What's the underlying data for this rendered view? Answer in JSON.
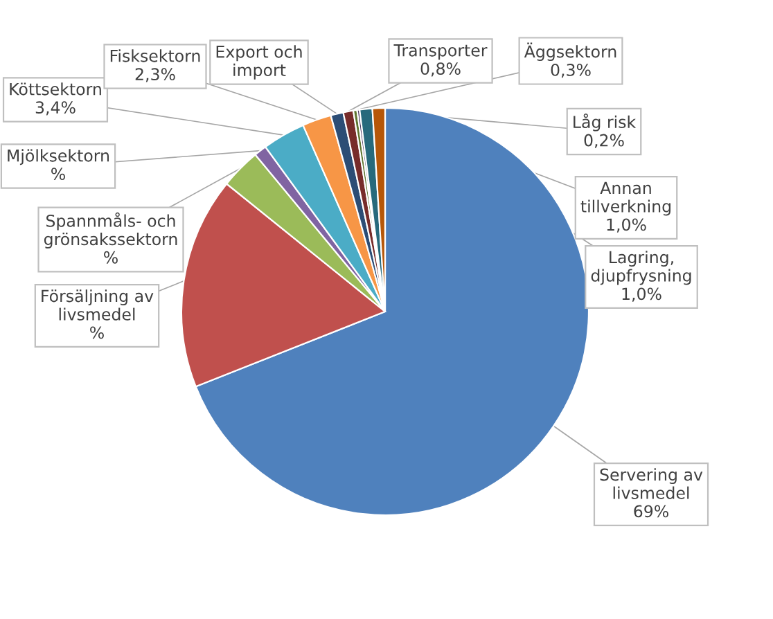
{
  "chart_data": {
    "type": "pie",
    "categories": [
      "Servering av\nlivsmedel",
      "Försäljning av\nlivsmedel",
      "Spannmåls- och\ngrönsakssektorn",
      "Mjölksektorn",
      "Köttsektorn",
      "Fisksektorn",
      "Export och\nimport",
      "Transporter",
      "Äggsektorn",
      "Låg risk",
      "Annan\ntillverkning",
      "Lagring,\ndjupfrysning"
    ],
    "values": [
      69,
      16.8,
      3.2,
      1,
      3.4,
      2.3,
      1,
      0.8,
      0.3,
      0.2,
      1,
      1
    ],
    "value_labels": [
      "69%",
      "%",
      "%",
      "%",
      "3,4%",
      "2,3%",
      null,
      "0,8%",
      "0,3%",
      "0,2%",
      "1,0%",
      "1,0%"
    ],
    "colors": [
      "#4f81bd",
      "#c0504d",
      "#9bbb59",
      "#8064a2",
      "#4bacc6",
      "#f79646",
      "#2c4d75",
      "#772c2a",
      "#5f7530",
      "#4d3b62",
      "#276a7c",
      "#b65708"
    ]
  }
}
